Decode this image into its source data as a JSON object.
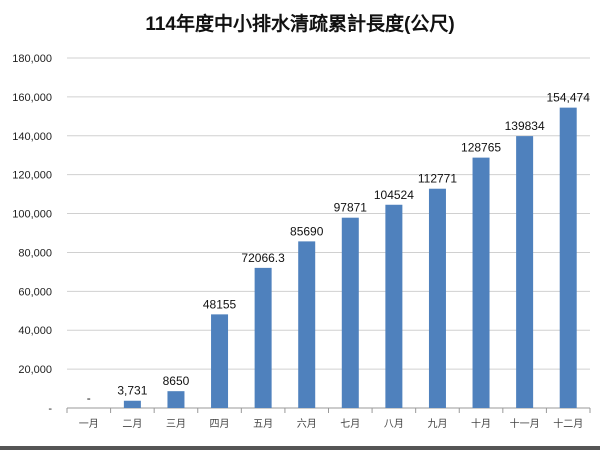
{
  "chart_data": {
    "type": "bar",
    "title": "114年度中小排水清疏累計長度(公尺)",
    "xlabel": "",
    "ylabel": "",
    "categories": [
      "一月",
      "二月",
      "三月",
      "四月",
      "五月",
      "六月",
      "七月",
      "八月",
      "九月",
      "十月",
      "十一月",
      "十二月"
    ],
    "values": [
      0,
      3731,
      8650,
      48155,
      72066.3,
      85690,
      97871,
      104524,
      112771,
      128765,
      139834,
      154474
    ],
    "data_labels": [
      "-",
      "3,731",
      "8650",
      "48155",
      "72066.3",
      "85690",
      "97871",
      "104524",
      "112771",
      "128765",
      "139834",
      "154,474"
    ],
    "ylim": [
      0,
      180000
    ],
    "yticks": [
      0,
      20000,
      40000,
      60000,
      80000,
      100000,
      120000,
      140000,
      160000,
      180000
    ],
    "ytick_labels": [
      "-",
      "20,000",
      "40,000",
      "60,000",
      "80,000",
      "100,000",
      "120,000",
      "140,000",
      "160,000",
      "180,000"
    ],
    "grid": true,
    "legend": "none",
    "bar_color": "#4f81bd"
  }
}
